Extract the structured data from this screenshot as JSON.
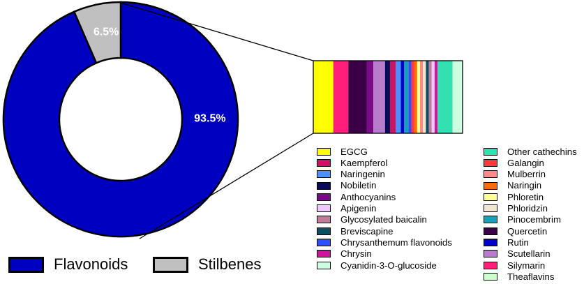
{
  "chart_data": [
    {
      "type": "pie",
      "series": [
        {
          "name": "Flavonoids",
          "value": 93.5,
          "label": "93.5%",
          "color": "#0000c0"
        },
        {
          "name": "Stilbenes",
          "value": 6.5,
          "label": "6.5%",
          "color": "#c0c0c0"
        }
      ],
      "legend": "bottom"
    },
    {
      "type": "bar",
      "stacked": true,
      "breakdown_of": "Flavonoids",
      "legend": "right",
      "segments": [
        {
          "name": "EGCG",
          "value": 2.4,
          "color": "#ffff00"
        },
        {
          "name": "Silymarin",
          "value": 1.8,
          "color": "#ff1f7a"
        },
        {
          "name": "Quercetin",
          "value": 2.2,
          "color": "#3a0046"
        },
        {
          "name": "Anthocyanins",
          "value": 0.8,
          "color": "#7a0a86"
        },
        {
          "name": "Scutellarin",
          "value": 1.4,
          "color": "#b87ccc"
        },
        {
          "name": "Nobiletin",
          "value": 0.6,
          "color": "#0a0a5a"
        },
        {
          "name": "Kaempferol",
          "value": 0.7,
          "color": "#cc1466"
        },
        {
          "name": "Naringenin",
          "value": 0.6,
          "color": "#4a90ff"
        },
        {
          "name": "Rutin",
          "value": 0.4,
          "color": "#0000cc"
        },
        {
          "name": "Pinocembrim",
          "value": 0.5,
          "color": "#1a9fb8"
        },
        {
          "name": "Chrysanthemum flavonoids",
          "value": 0.35,
          "color": "#2f4fff"
        },
        {
          "name": "Galangin",
          "value": 0.35,
          "color": "#ff3a3a"
        },
        {
          "name": "Naringin",
          "value": 0.35,
          "color": "#ff6a00"
        },
        {
          "name": "Phloretin",
          "value": 0.35,
          "color": "#ffff99"
        },
        {
          "name": "Mulberrin",
          "value": 0.35,
          "color": "#ff8a8a"
        },
        {
          "name": "Phloridzin",
          "value": 0.35,
          "color": "#f2e6d0"
        },
        {
          "name": "Breviscapine",
          "value": 0.35,
          "color": "#0a5060"
        },
        {
          "name": "Glycosylated baicalin",
          "value": 0.35,
          "color": "#c07a9a"
        },
        {
          "name": "Apigenin",
          "value": 0.35,
          "color": "#f0c8ff"
        },
        {
          "name": "Chrysin",
          "value": 0.35,
          "color": "#d0149c"
        },
        {
          "name": "Other cathechins",
          "value": 1.8,
          "color": "#33e0b0"
        },
        {
          "name": "Cyanidin-3-O-glucoside",
          "value": 1.2,
          "color": "#ccffe0"
        }
      ],
      "legend_columns": [
        [
          "EGCG",
          "Kaempferol",
          "Naringenin",
          "Nobiletin",
          "Anthocyanins",
          "Apigenin",
          "Glycosylated baicalin",
          "Breviscapine",
          "Chrysanthemum flavonoids",
          "Chrysin",
          "Cyanidin-3-O-glucoside"
        ],
        [
          "Other cathechins",
          "Galangin",
          "Mulberrin",
          "Naringin",
          "Phloretin",
          "Phloridzin",
          "Pinocembrim",
          "Quercetin",
          "Rutin",
          "Scutellarin",
          "Silymarin",
          "Theaflavins"
        ]
      ],
      "legend_colors": {
        "EGCG": "#ffff00",
        "Kaempferol": "#cc1466",
        "Naringenin": "#4a90ff",
        "Nobiletin": "#0a0a5a",
        "Anthocyanins": "#7a0a86",
        "Apigenin": "#f0c8ff",
        "Glycosylated baicalin": "#c07a9a",
        "Breviscapine": "#0a5060",
        "Chrysanthemum flavonoids": "#2f4fff",
        "Chrysin": "#d0149c",
        "Cyanidin-3-O-glucoside": "#ccffe0",
        "Other cathechins": "#33e0b0",
        "Galangin": "#ff3a3a",
        "Mulberrin": "#ff8a8a",
        "Naringin": "#ff6a00",
        "Phloretin": "#ffff99",
        "Phloridzin": "#f2e6d0",
        "Pinocembrim": "#1a9fb8",
        "Quercetin": "#3a0046",
        "Rutin": "#0000cc",
        "Scutellarin": "#b87ccc",
        "Silymarin": "#ff1f7a",
        "Theaflavins": "#ccffcc"
      }
    }
  ]
}
